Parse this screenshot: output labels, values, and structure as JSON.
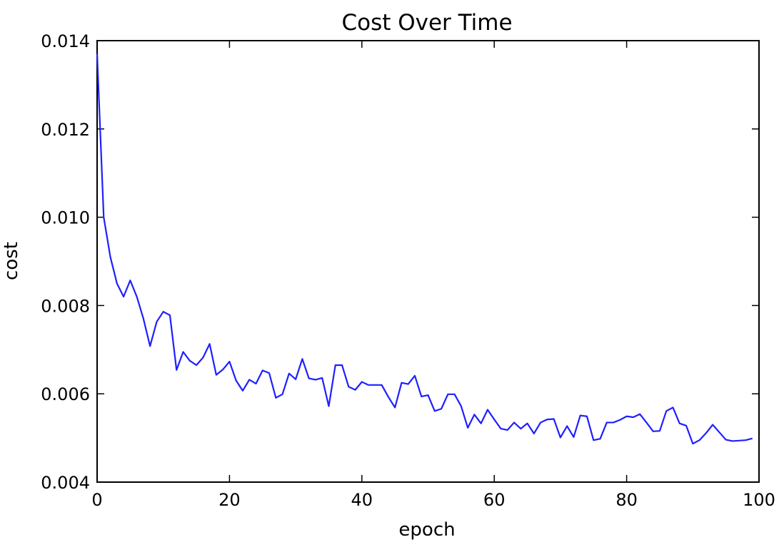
{
  "chart_data": {
    "type": "line",
    "title": "Cost Over Time",
    "xlabel": "epoch",
    "ylabel": "cost",
    "xlim": [
      0,
      100
    ],
    "ylim": [
      0.004,
      0.014
    ],
    "x_ticks": [
      0,
      20,
      40,
      60,
      80,
      100
    ],
    "x_tick_labels": [
      "0",
      "20",
      "40",
      "60",
      "80",
      "100"
    ],
    "y_ticks": [
      0.004,
      0.006,
      0.008,
      0.01,
      0.012,
      0.014
    ],
    "y_tick_labels": [
      "0.004",
      "0.006",
      "0.008",
      "0.010",
      "0.012",
      "0.014"
    ],
    "grid": false,
    "legend": "none",
    "series": [
      {
        "color": "#1f1fff",
        "x": [
          0,
          1,
          2,
          3,
          4,
          5,
          6,
          7,
          8,
          9,
          10,
          11,
          12,
          13,
          14,
          15,
          16,
          17,
          18,
          19,
          20,
          21,
          22,
          23,
          24,
          25,
          26,
          27,
          28,
          29,
          30,
          31,
          32,
          33,
          34,
          35,
          36,
          37,
          38,
          39,
          40,
          41,
          42,
          43,
          44,
          45,
          46,
          47,
          48,
          49,
          50,
          51,
          52,
          53,
          54,
          55,
          56,
          57,
          58,
          59,
          60,
          61,
          62,
          63,
          64,
          65,
          66,
          67,
          68,
          69,
          70,
          71,
          72,
          73,
          74,
          75,
          76,
          77,
          78,
          79,
          80,
          81,
          82,
          83,
          84,
          85,
          86,
          87,
          88,
          89,
          90,
          91,
          92,
          93,
          94,
          95,
          96,
          97,
          98,
          99
        ],
        "values": [
          0.0137,
          0.01,
          0.0091,
          0.0085,
          0.0082,
          0.00857,
          0.0082,
          0.0077,
          0.00708,
          0.00763,
          0.00786,
          0.00778,
          0.00654,
          0.00695,
          0.00675,
          0.00665,
          0.00682,
          0.00713,
          0.00643,
          0.00655,
          0.00673,
          0.0063,
          0.00607,
          0.00632,
          0.00623,
          0.00653,
          0.00647,
          0.00591,
          0.00599,
          0.00646,
          0.00633,
          0.00679,
          0.00635,
          0.00632,
          0.00636,
          0.00572,
          0.00665,
          0.00665,
          0.00616,
          0.00609,
          0.00627,
          0.0062,
          0.0062,
          0.0062,
          0.00593,
          0.00569,
          0.00625,
          0.00622,
          0.00641,
          0.00594,
          0.00597,
          0.00561,
          0.00566,
          0.00599,
          0.00599,
          0.00572,
          0.00523,
          0.00553,
          0.00533,
          0.00564,
          0.00542,
          0.00521,
          0.00518,
          0.00535,
          0.00521,
          0.00533,
          0.0051,
          0.00535,
          0.00542,
          0.00543,
          0.00501,
          0.00527,
          0.00502,
          0.00551,
          0.00549,
          0.00495,
          0.00498,
          0.00535,
          0.00535,
          0.00541,
          0.00549,
          0.00547,
          0.00554,
          0.00535,
          0.00515,
          0.00516,
          0.00561,
          0.00569,
          0.00533,
          0.00528,
          0.00487,
          0.00495,
          0.00511,
          0.0053,
          0.00513,
          0.00496,
          0.00493,
          0.00494,
          0.00495,
          0.00499
        ]
      }
    ]
  }
}
